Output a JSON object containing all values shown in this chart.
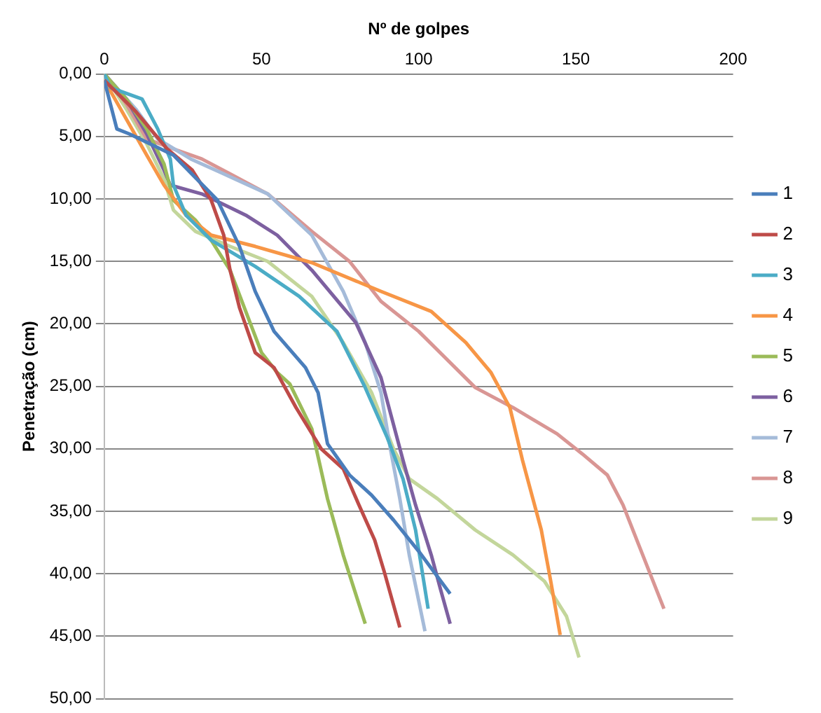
{
  "chart_data": {
    "type": "line",
    "xlabel": "Nº de golpes",
    "ylabel": "Penetração (cm)",
    "xlim": [
      0,
      200
    ],
    "xticks": [
      0,
      50,
      100,
      150,
      200
    ],
    "ylim": [
      50,
      0
    ],
    "yticks": [
      {
        "value": 0,
        "label": "0,00"
      },
      {
        "value": 5,
        "label": "5,00"
      },
      {
        "value": 10,
        "label": "10,00"
      },
      {
        "value": 15,
        "label": "15,00"
      },
      {
        "value": 20,
        "label": "20,00"
      },
      {
        "value": 25,
        "label": "25,00"
      },
      {
        "value": 30,
        "label": "30,00"
      },
      {
        "value": 35,
        "label": "35,00"
      },
      {
        "value": 40,
        "label": "40,00"
      },
      {
        "value": 45,
        "label": "45,00"
      },
      {
        "value": 50,
        "label": "50,00"
      }
    ],
    "grid": "y",
    "legend": "right",
    "marker": "none",
    "line_style": "solid",
    "series": [
      {
        "name": "1",
        "color": "#4a7ebb",
        "x": [
          0,
          4,
          8,
          22,
          36,
          43,
          48,
          54,
          64,
          68,
          71,
          78,
          85,
          92,
          100,
          110
        ],
        "values": [
          0.5,
          4.4,
          4.8,
          6.5,
          10.1,
          13.8,
          17.4,
          20.6,
          23.5,
          25.5,
          29.6,
          32.1,
          33.7,
          35.7,
          38.2,
          41.6
        ]
      },
      {
        "name": "2",
        "color": "#be4b48",
        "x": [
          0,
          10,
          20,
          28,
          34,
          38,
          40,
          43,
          48,
          54,
          61,
          69,
          76,
          81,
          86,
          89,
          94
        ],
        "values": [
          0.5,
          3,
          6,
          7.7,
          10.1,
          12.9,
          15.7,
          18.7,
          22.3,
          23.5,
          26.7,
          30,
          31.6,
          34.5,
          37.3,
          39.8,
          44.3
        ]
      },
      {
        "name": "3",
        "color": "#4bacc6",
        "x": [
          0,
          2,
          12,
          17,
          21,
          22,
          26,
          34,
          48,
          62,
          74,
          83,
          90,
          95,
          99,
          103
        ],
        "values": [
          0,
          1.1,
          2,
          4.4,
          6.8,
          8.9,
          11.3,
          13.3,
          15.4,
          17.8,
          20.6,
          25.1,
          29.1,
          32.4,
          36.5,
          42.8
        ]
      },
      {
        "name": "4",
        "color": "#f79646",
        "x": [
          0,
          13.5,
          19,
          26,
          34,
          48,
          66,
          88,
          104,
          115,
          123,
          129,
          133,
          139,
          142,
          145
        ],
        "values": [
          0.5,
          6.5,
          8.9,
          11.3,
          12.9,
          13.8,
          15.1,
          17.4,
          19,
          21.5,
          23.9,
          26.7,
          30.9,
          36.5,
          40.6,
          44.9
        ]
      },
      {
        "name": "5",
        "color": "#9bbb59",
        "x": [
          0,
          7,
          13.5,
          19,
          22,
          29,
          34,
          40,
          45,
          50,
          55,
          59,
          66,
          71,
          76,
          83
        ],
        "values": [
          0,
          2,
          4.4,
          7.2,
          10.1,
          11.7,
          13.3,
          15.7,
          19,
          22.3,
          23.9,
          24.8,
          28.4,
          34,
          38.5,
          44
        ]
      },
      {
        "name": "6",
        "color": "#7d60a0",
        "x": [
          0,
          7,
          13.5,
          19,
          21,
          31,
          45,
          55,
          66,
          80,
          88,
          95,
          99,
          104,
          107,
          110
        ],
        "values": [
          0,
          2,
          4.8,
          7.7,
          8.9,
          9.6,
          11.3,
          12.9,
          15.7,
          19.9,
          24.3,
          30.9,
          34.5,
          38.5,
          41.3,
          44
        ]
      },
      {
        "name": "7",
        "color": "#a5bbd9",
        "x": [
          0,
          10,
          17,
          27.5,
          38,
          52,
          66,
          76,
          83,
          88,
          91,
          94,
          97,
          102
        ],
        "values": [
          0,
          2.8,
          5.2,
          6.8,
          8,
          9.6,
          12.9,
          17.4,
          21.5,
          25.5,
          30,
          34,
          38.5,
          44.6
        ]
      },
      {
        "name": "8",
        "color": "#d99694",
        "x": [
          0,
          7,
          13.5,
          22,
          31,
          40,
          52,
          66,
          78,
          88,
          100,
          118,
          130,
          144,
          152,
          160,
          165,
          170,
          178
        ],
        "values": [
          0,
          2.4,
          5.2,
          6,
          6.8,
          8,
          9.6,
          12.6,
          15,
          18.2,
          20.6,
          25.1,
          26.7,
          28.8,
          30.4,
          32.1,
          34.5,
          37.7,
          42.8
        ]
      },
      {
        "name": "9",
        "color": "#c3d69b",
        "x": [
          0,
          7,
          13.5,
          19,
          22,
          29,
          40,
          52,
          66,
          76,
          85,
          92,
          97,
          106,
          118,
          130,
          140,
          147,
          151
        ],
        "values": [
          0,
          2.8,
          5.6,
          8.4,
          10.9,
          12.6,
          13.8,
          15,
          17.8,
          21.5,
          25.5,
          30,
          32.4,
          34,
          36.5,
          38.5,
          40.6,
          43.4,
          46.7
        ]
      }
    ]
  }
}
